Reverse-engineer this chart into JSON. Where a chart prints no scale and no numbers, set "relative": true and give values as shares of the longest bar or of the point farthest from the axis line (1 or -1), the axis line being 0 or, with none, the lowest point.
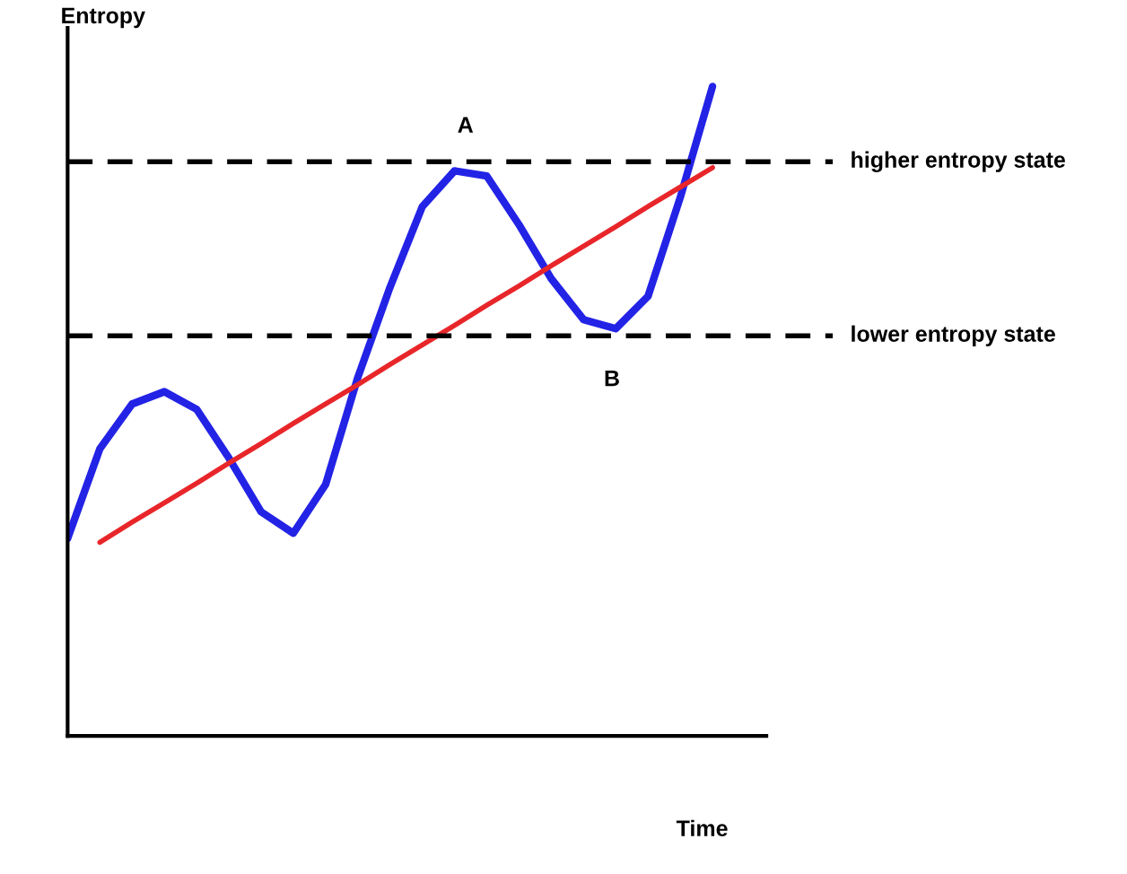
{
  "chart_data": {
    "type": "line",
    "relative": true,
    "xlabel": "Time",
    "ylabel": "Entropy",
    "categories": [
      null,
      null,
      null,
      null,
      null,
      null,
      null,
      null,
      null,
      null,
      null,
      null,
      null,
      null,
      null,
      null,
      null,
      null,
      null,
      null,
      null
    ],
    "series": [
      {
        "color": "#2323e6",
        "values": [
          0.304,
          0.442,
          0.511,
          0.53,
          0.503,
          0.428,
          0.345,
          0.312,
          0.387,
          0.552,
          0.691,
          0.815,
          0.87,
          0.862,
          0.787,
          0.704,
          0.641,
          0.627,
          0.677,
          0.829,
          1.0
        ]
      },
      {
        "color": "#e8262a",
        "values": [
          null,
          0.298,
          0.329,
          0.359,
          0.389,
          0.42,
          0.45,
          0.481,
          0.511,
          0.541,
          0.572,
          0.602,
          0.632,
          0.663,
          0.693,
          0.724,
          0.754,
          0.784,
          0.815,
          0.845,
          0.875
        ]
      }
    ],
    "ref_lines": [
      {
        "axis": "y",
        "value": 0.884,
        "label": "higher entropy state",
        "color": "#000000",
        "line_style": "dashed"
      },
      {
        "axis": "y",
        "value": 0.616,
        "label": "lower entropy state",
        "color": "#000000",
        "line_style": "dashed"
      }
    ],
    "annotations": [
      "A",
      "B"
    ],
    "legend": false,
    "marker": "none",
    "line_style": "solid"
  }
}
